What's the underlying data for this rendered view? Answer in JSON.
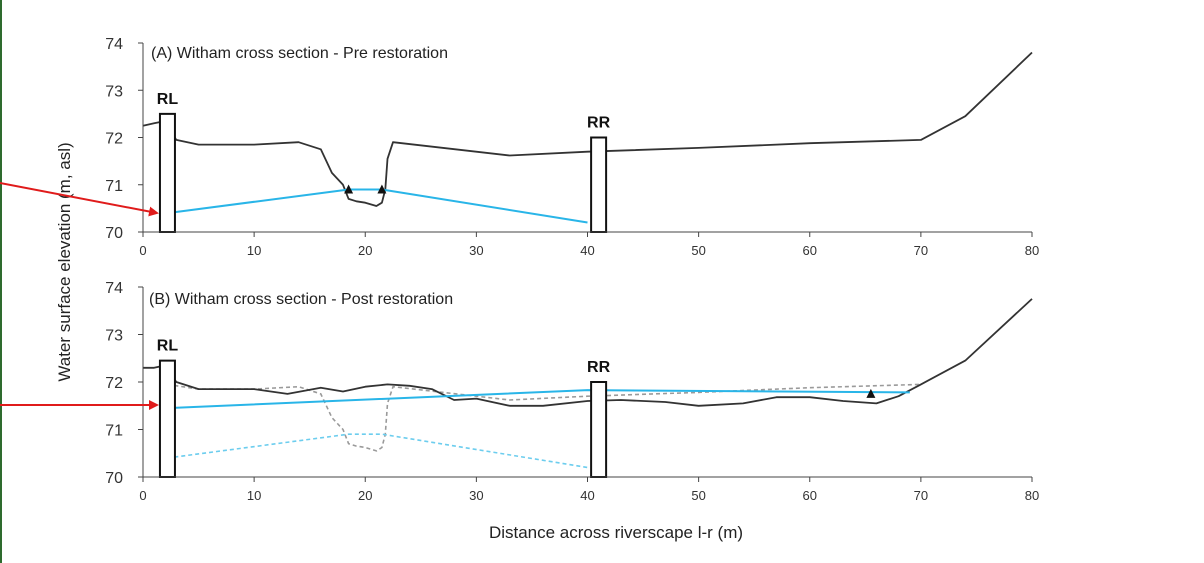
{
  "ylabel": "Water surface elevation (m, asl)",
  "xlabel": "Distance across riverscape l-r (m)",
  "colors": {
    "ground": "#333333",
    "water": "#29b5e8",
    "pre_ground_dashed": "#9a9a9a",
    "pre_water_dashed": "#6ccdee",
    "arrow": "#e01b1b"
  },
  "chart_data": [
    {
      "type": "line",
      "title": "(A) Witham cross section - Pre restoration",
      "xlim": [
        0,
        80
      ],
      "ylim": [
        70,
        74
      ],
      "xticks": [
        0,
        10,
        20,
        30,
        40,
        50,
        60,
        70,
        80
      ],
      "yticks": [
        70,
        71,
        72,
        73,
        74
      ],
      "bank_markers": [
        {
          "label": "RL",
          "x": 2.2,
          "bottom": 70,
          "top": 72.5
        },
        {
          "label": "RR",
          "x": 41,
          "bottom": 70,
          "top": 72.0
        }
      ],
      "series": [
        {
          "role": "ground",
          "style": "solid",
          "x": [
            0,
            1,
            2,
            3,
            5,
            10,
            14,
            16,
            17,
            18,
            18.5,
            19.2,
            20,
            21,
            21.5,
            21.8,
            22,
            22.5,
            33,
            40,
            50,
            60,
            70,
            74,
            80
          ],
          "y": [
            72.25,
            72.3,
            72.35,
            71.95,
            71.85,
            71.85,
            71.9,
            71.75,
            71.25,
            71.0,
            70.7,
            70.65,
            70.62,
            70.55,
            70.62,
            70.9,
            71.55,
            71.9,
            71.62,
            71.7,
            71.78,
            71.88,
            71.95,
            72.45,
            73.8
          ]
        },
        {
          "role": "water",
          "style": "solid",
          "x": [
            2.2,
            18.5,
            21.5,
            40
          ],
          "y": [
            70.4,
            70.9,
            70.9,
            70.2
          ]
        }
      ],
      "markers": [
        {
          "x": 18.5,
          "y": 70.9
        },
        {
          "x": 21.5,
          "y": 70.9
        }
      ]
    },
    {
      "type": "line",
      "title": "(B) Witham cross section - Post restoration",
      "xlim": [
        0,
        80
      ],
      "ylim": [
        70,
        74
      ],
      "xticks": [
        0,
        10,
        20,
        30,
        40,
        50,
        60,
        70,
        80
      ],
      "yticks": [
        70,
        71,
        72,
        73,
        74
      ],
      "bank_markers": [
        {
          "label": "RL",
          "x": 2.2,
          "bottom": 70,
          "top": 72.45
        },
        {
          "label": "RR",
          "x": 41,
          "bottom": 70,
          "top": 72.0
        }
      ],
      "series": [
        {
          "role": "ground",
          "style": "solid",
          "x": [
            0,
            1,
            2,
            3,
            5,
            10,
            13,
            16,
            18,
            20,
            22,
            24,
            26,
            28,
            30,
            33,
            36,
            40,
            43,
            47,
            50,
            54,
            57,
            60,
            63,
            66,
            68,
            70,
            74,
            80
          ],
          "y": [
            72.3,
            72.3,
            72.35,
            72.0,
            71.85,
            71.85,
            71.75,
            71.88,
            71.8,
            71.9,
            71.95,
            71.92,
            71.85,
            71.62,
            71.65,
            71.5,
            71.5,
            71.6,
            71.62,
            71.58,
            71.5,
            71.55,
            71.68,
            71.68,
            71.6,
            71.55,
            71.7,
            71.95,
            72.45,
            73.75
          ]
        },
        {
          "role": "water",
          "style": "solid",
          "x": [
            2.2,
            40,
            69
          ],
          "y": [
            71.45,
            71.83,
            71.78
          ]
        },
        {
          "role": "pre_ground",
          "style": "dashed",
          "x": [
            2.2,
            5,
            10,
            14,
            16,
            17,
            18,
            18.5,
            19.2,
            20,
            21,
            21.5,
            21.8,
            22,
            22.5,
            33,
            40,
            50,
            60,
            70
          ],
          "y": [
            71.95,
            71.85,
            71.85,
            71.9,
            71.75,
            71.25,
            71.0,
            70.7,
            70.65,
            70.62,
            70.55,
            70.62,
            70.9,
            71.55,
            71.9,
            71.62,
            71.7,
            71.78,
            71.88,
            71.95
          ]
        },
        {
          "role": "pre_water",
          "style": "dashed",
          "x": [
            2.2,
            18.5,
            21.5,
            40
          ],
          "y": [
            70.4,
            70.9,
            70.9,
            70.2
          ]
        }
      ],
      "markers": [
        {
          "x": 65.5,
          "y": 71.75
        }
      ]
    }
  ]
}
